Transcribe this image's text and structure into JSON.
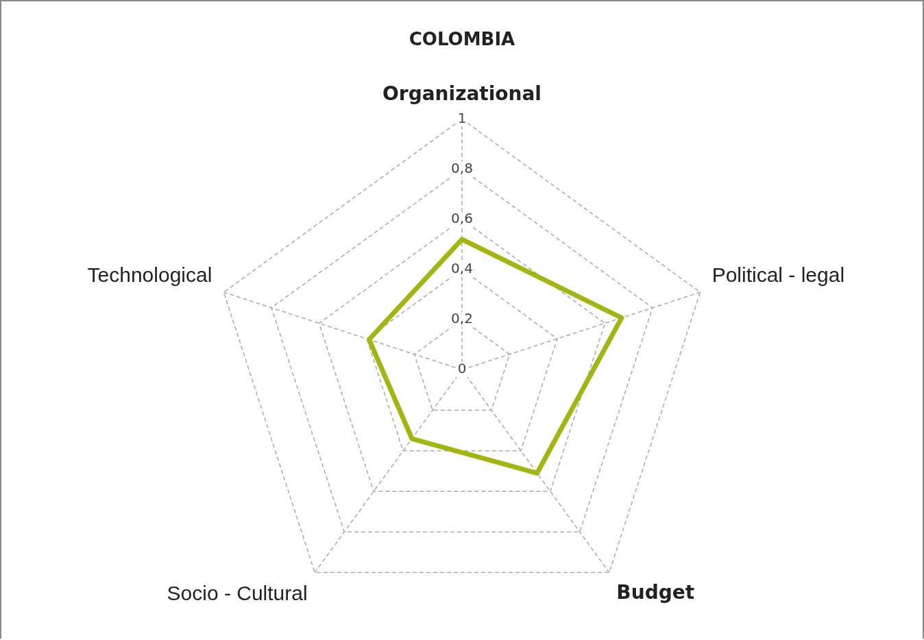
{
  "chart_data": {
    "type": "radar",
    "title": "COLOMBIA",
    "categories": [
      "Organizational",
      "Political - legal",
      "Budget",
      "Socio - Cultural",
      "Technological"
    ],
    "series": [
      {
        "color": "#a3b510",
        "values": [
          0.52,
          0.67,
          0.51,
          0.34,
          0.39
        ]
      }
    ],
    "ylim": [
      0,
      1
    ],
    "yticks": [
      {
        "value": 0,
        "label": "0"
      },
      {
        "value": 0.2,
        "label": "0,2"
      },
      {
        "value": 0.4,
        "label": "0,4"
      },
      {
        "value": 0.6,
        "label": "0,6"
      },
      {
        "value": 0.8,
        "label": "0,8"
      },
      {
        "value": 1,
        "label": "1"
      }
    ],
    "grid": true,
    "legend": false,
    "marker": "none",
    "line_style": "solid"
  }
}
